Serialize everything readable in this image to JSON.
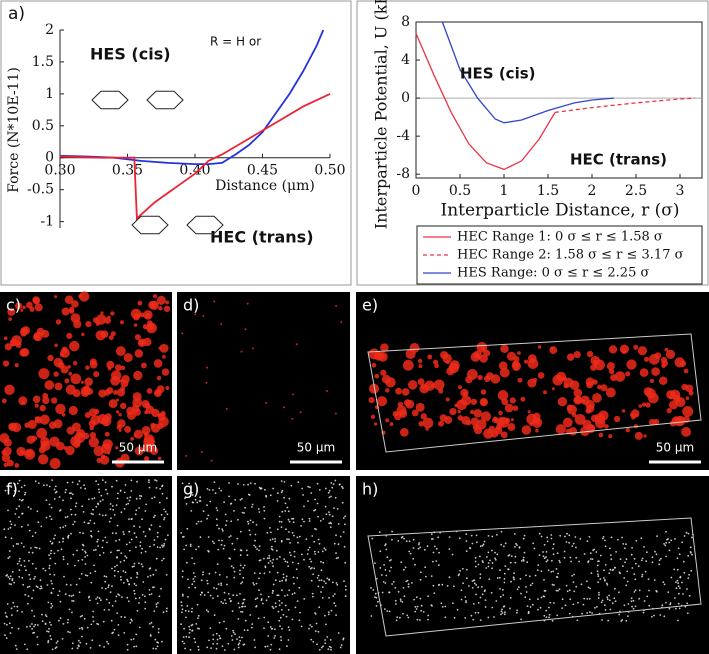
{
  "chart_data": [
    {
      "type": "line",
      "panel_label": "a)",
      "xlabel": "Distance (μm)",
      "ylabel": "Force (N*10E-11)",
      "xlim": [
        0.3,
        0.5
      ],
      "xticks": [
        {
          "value": 0.3,
          "label": "0.30"
        },
        0.35,
        {
          "value": 0.4,
          "label": "0.40"
        },
        0.45,
        {
          "value": 0.5,
          "label": "0.50"
        }
      ],
      "ylim": [
        -1.1,
        2
      ],
      "yticks": [
        -1,
        -0.5,
        0,
        0.5,
        1,
        1.5,
        2
      ],
      "annotations": [
        "HES (cis)",
        "HEC (trans)",
        "R = H or"
      ],
      "series": [
        {
          "color": "#2233dd",
          "x": [
            0.3,
            0.32,
            0.34,
            0.36,
            0.38,
            0.4,
            0.41,
            0.42,
            0.43,
            0.44,
            0.45,
            0.46,
            0.47,
            0.48,
            0.49,
            0.495
          ],
          "values": [
            0.03,
            0.02,
            0,
            -0.05,
            -0.08,
            -0.1,
            -0.1,
            -0.08,
            0.05,
            0.2,
            0.4,
            0.7,
            1.0,
            1.35,
            1.75,
            2.0
          ]
        },
        {
          "color": "#ee2233",
          "x": [
            0.3,
            0.33,
            0.355,
            0.357,
            0.37,
            0.38,
            0.39,
            0.4,
            0.41,
            0.42,
            0.44,
            0.46,
            0.48,
            0.5
          ],
          "values": [
            0.02,
            0,
            0,
            -0.95,
            -0.7,
            -0.55,
            -0.4,
            -0.25,
            -0.05,
            0.05,
            0.3,
            0.55,
            0.8,
            1.0
          ]
        }
      ]
    },
    {
      "type": "line",
      "panel_label": "b)",
      "xlabel": "Interparticle Distance, r (σ)",
      "ylabel": "Interparticle Potential, U (kB T)",
      "xlim": [
        0,
        3.25
      ],
      "xticks": [
        0,
        0.5,
        1,
        1.5,
        2,
        2.5,
        3
      ],
      "ylim": [
        -8.4,
        8
      ],
      "yticks": [
        -8,
        -4,
        0,
        4,
        8
      ],
      "annotations": [
        "HES (cis)",
        "HEC (trans)"
      ],
      "series": [
        {
          "name": "HEC Range 1: 0 σ ≤ r ≤ 1.58 σ",
          "color": "#ee3344",
          "dash": false,
          "x": [
            0,
            0.2,
            0.4,
            0.6,
            0.8,
            1.0,
            1.2,
            1.4,
            1.58
          ],
          "values": [
            6.8,
            2.5,
            -1.5,
            -4.8,
            -6.8,
            -7.5,
            -6.6,
            -4.3,
            -1.5
          ]
        },
        {
          "name": "HEC Range 2: 1.58 σ ≤ r ≤ 3.17 σ",
          "color": "#ee3344",
          "dash": true,
          "x": [
            1.58,
            2,
            2.5,
            3,
            3.17
          ],
          "values": [
            -1.5,
            -1.0,
            -0.5,
            -0.1,
            0
          ]
        },
        {
          "name": "HES Range: 0 σ ≤ r ≤ 2.25 σ",
          "color": "#3344cc",
          "dash": false,
          "x": [
            0.3,
            0.5,
            0.7,
            0.9,
            1.0,
            1.2,
            1.5,
            1.8,
            2.0,
            2.25
          ],
          "values": [
            8,
            3,
            0,
            -2.2,
            -2.6,
            -2.3,
            -1.3,
            -0.5,
            -0.2,
            0
          ]
        }
      ]
    }
  ],
  "panels": [
    {
      "label": "c)",
      "scale_bar": "50 μm"
    },
    {
      "label": "d)",
      "scale_bar": "50 μm"
    },
    {
      "label": "e)",
      "scale_bar": "50 μm"
    },
    {
      "label": "f)"
    },
    {
      "label": "g)"
    },
    {
      "label": "h)"
    }
  ]
}
